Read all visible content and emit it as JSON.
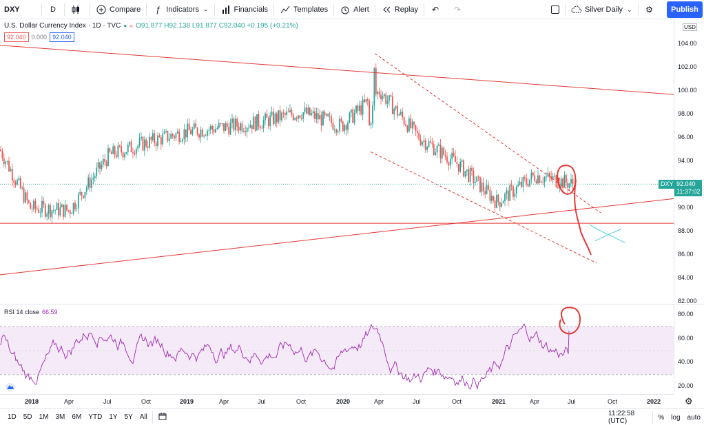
{
  "toolbar": {
    "symbol": "DXY",
    "interval": "D",
    "compare": "Compare",
    "indicators": "Indicators",
    "financials": "Financials",
    "templates": "Templates",
    "alert": "Alert",
    "replay": "Replay",
    "layout_name": "Silver Daily",
    "publish": "Publish"
  },
  "legend": {
    "title": "U.S. Dollar Currency Index · 1D · TVC",
    "ohlc": "O91.877 H92.138 L91.877 C92.040 +0.195 (+0.21%)",
    "sell": "92.040",
    "spread": "0.000",
    "buy": "92.040"
  },
  "price_axis": {
    "currency": "USD",
    "ticks": [
      "104.00",
      "102.00",
      "100.00",
      "98.00",
      "96.00",
      "94.00",
      "92.00",
      "90.00",
      "88.00",
      "86.00",
      "84.00",
      "82.000"
    ],
    "last_symbol": "DXY",
    "last_price": "92.040",
    "countdown": "11:37:02"
  },
  "rsi": {
    "label": "RSI 14 close",
    "value": "66.59",
    "ticks": [
      "80.00",
      "60.00",
      "40.00",
      "20.00"
    ]
  },
  "time_axis": {
    "labels": [
      "2018",
      "Apr",
      "Jul",
      "Oct",
      "2019",
      "Apr",
      "Jul",
      "Oct",
      "2020",
      "Apr",
      "Jul",
      "Oct",
      "2021",
      "Apr",
      "Jul",
      "Oct",
      "2022"
    ]
  },
  "bottom_bar": {
    "ranges": [
      "1D",
      "5D",
      "1M",
      "3M",
      "6M",
      "YTD",
      "1Y",
      "5Y",
      "All"
    ],
    "clock": "11:22:58 (UTC)",
    "percent": "%",
    "log": "log",
    "auto": "auto"
  },
  "colors": {
    "up": "#26a69a",
    "down": "#ef5350",
    "rsi": "#9c27b0",
    "accent": "#2962ff",
    "drawing": "#e53935"
  },
  "chart_data": {
    "type": "candlestick",
    "title": "U.S. Dollar Currency Index · 1D · TVC",
    "ylim": [
      82,
      105
    ],
    "x": [
      "2018",
      "Apr",
      "Jul",
      "Oct",
      "2019",
      "Apr",
      "Jul",
      "Oct",
      "2020",
      "Apr",
      "Jul",
      "Oct",
      "2021",
      "Apr",
      "Jul"
    ],
    "close": [
      90.0,
      89.8,
      94.5,
      95.6,
      96.5,
      96.9,
      97.4,
      98.2,
      97.0,
      100.0,
      96.1,
      93.8,
      90.5,
      92.8,
      92.04
    ],
    "rsi": {
      "ylim": [
        15,
        85
      ],
      "bands": [
        30,
        70
      ],
      "last": 66.59
    }
  }
}
